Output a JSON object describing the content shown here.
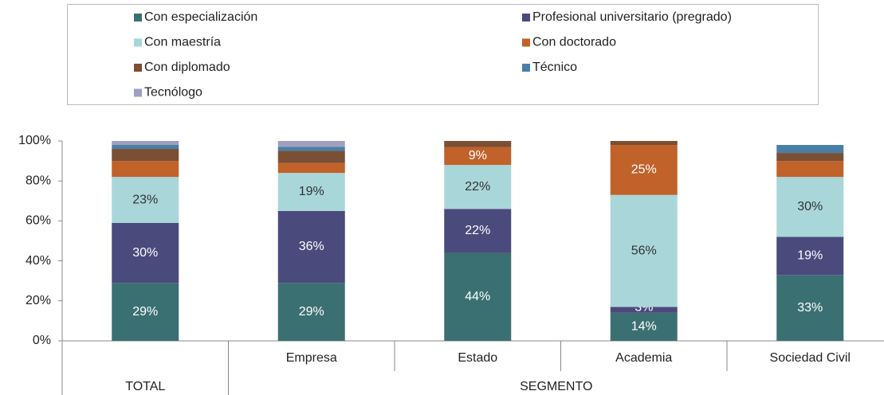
{
  "chart_data": {
    "type": "stacked_bar",
    "categories": [
      null,
      "Empresa",
      "Estado",
      "Academia",
      "Sociedad Civil"
    ],
    "groups": [
      {
        "label": "TOTAL",
        "span": 1
      },
      {
        "label": "SEGMENTO",
        "span": 4
      }
    ],
    "series": [
      {
        "name": "Con especialización",
        "color": "#3b7072",
        "label_color": "#ffffff",
        "values": [
          29,
          29,
          44,
          14,
          33
        ],
        "value_labels": [
          "29%",
          "29%",
          "44%",
          "14%",
          "33%"
        ]
      },
      {
        "name": "Profesional universitario (pregrado)",
        "color": "#4b4a7d",
        "label_color": "#ffffff",
        "values": [
          30,
          36,
          22,
          3,
          19
        ],
        "value_labels": [
          "30%",
          "36%",
          "22%",
          "3%",
          "19%"
        ]
      },
      {
        "name": "Con maestría",
        "color": "#a9d6d9",
        "label_color": "#333333",
        "values": [
          23,
          19,
          22,
          56,
          30
        ],
        "value_labels": [
          "23%",
          "19%",
          "22%",
          "56%",
          "30%"
        ]
      },
      {
        "name": "Con doctorado",
        "color": "#c0622a",
        "label_color": "#ffffff",
        "values": [
          8,
          5,
          9,
          25,
          8
        ],
        "value_labels": [
          null,
          null,
          "9%",
          "25%",
          null
        ]
      },
      {
        "name": "Con diplomado",
        "color": "#7a4f33",
        "label_color": "#ffffff",
        "values": [
          6,
          6,
          3,
          2,
          4
        ],
        "value_labels": [
          null,
          null,
          null,
          null,
          null
        ]
      },
      {
        "name": "Técnico",
        "color": "#4a7fa5",
        "label_color": "#ffffff",
        "values": [
          2,
          2,
          0,
          0,
          4
        ],
        "value_labels": [
          null,
          null,
          null,
          null,
          null
        ]
      },
      {
        "name": "Tecnólogo",
        "color": "#9fa0c0",
        "label_color": "#ffffff",
        "values": [
          2,
          3,
          0,
          0,
          0
        ],
        "value_labels": [
          null,
          null,
          null,
          null,
          null
        ]
      }
    ],
    "ylim": [
      0,
      100
    ],
    "yticks": [
      {
        "value": 0,
        "label": "0%"
      },
      {
        "value": 20,
        "label": "20%"
      },
      {
        "value": 40,
        "label": "40%"
      },
      {
        "value": 60,
        "label": "60%"
      },
      {
        "value": 80,
        "label": "80%"
      },
      {
        "value": 100,
        "label": "100%"
      }
    ],
    "legend": "top"
  }
}
